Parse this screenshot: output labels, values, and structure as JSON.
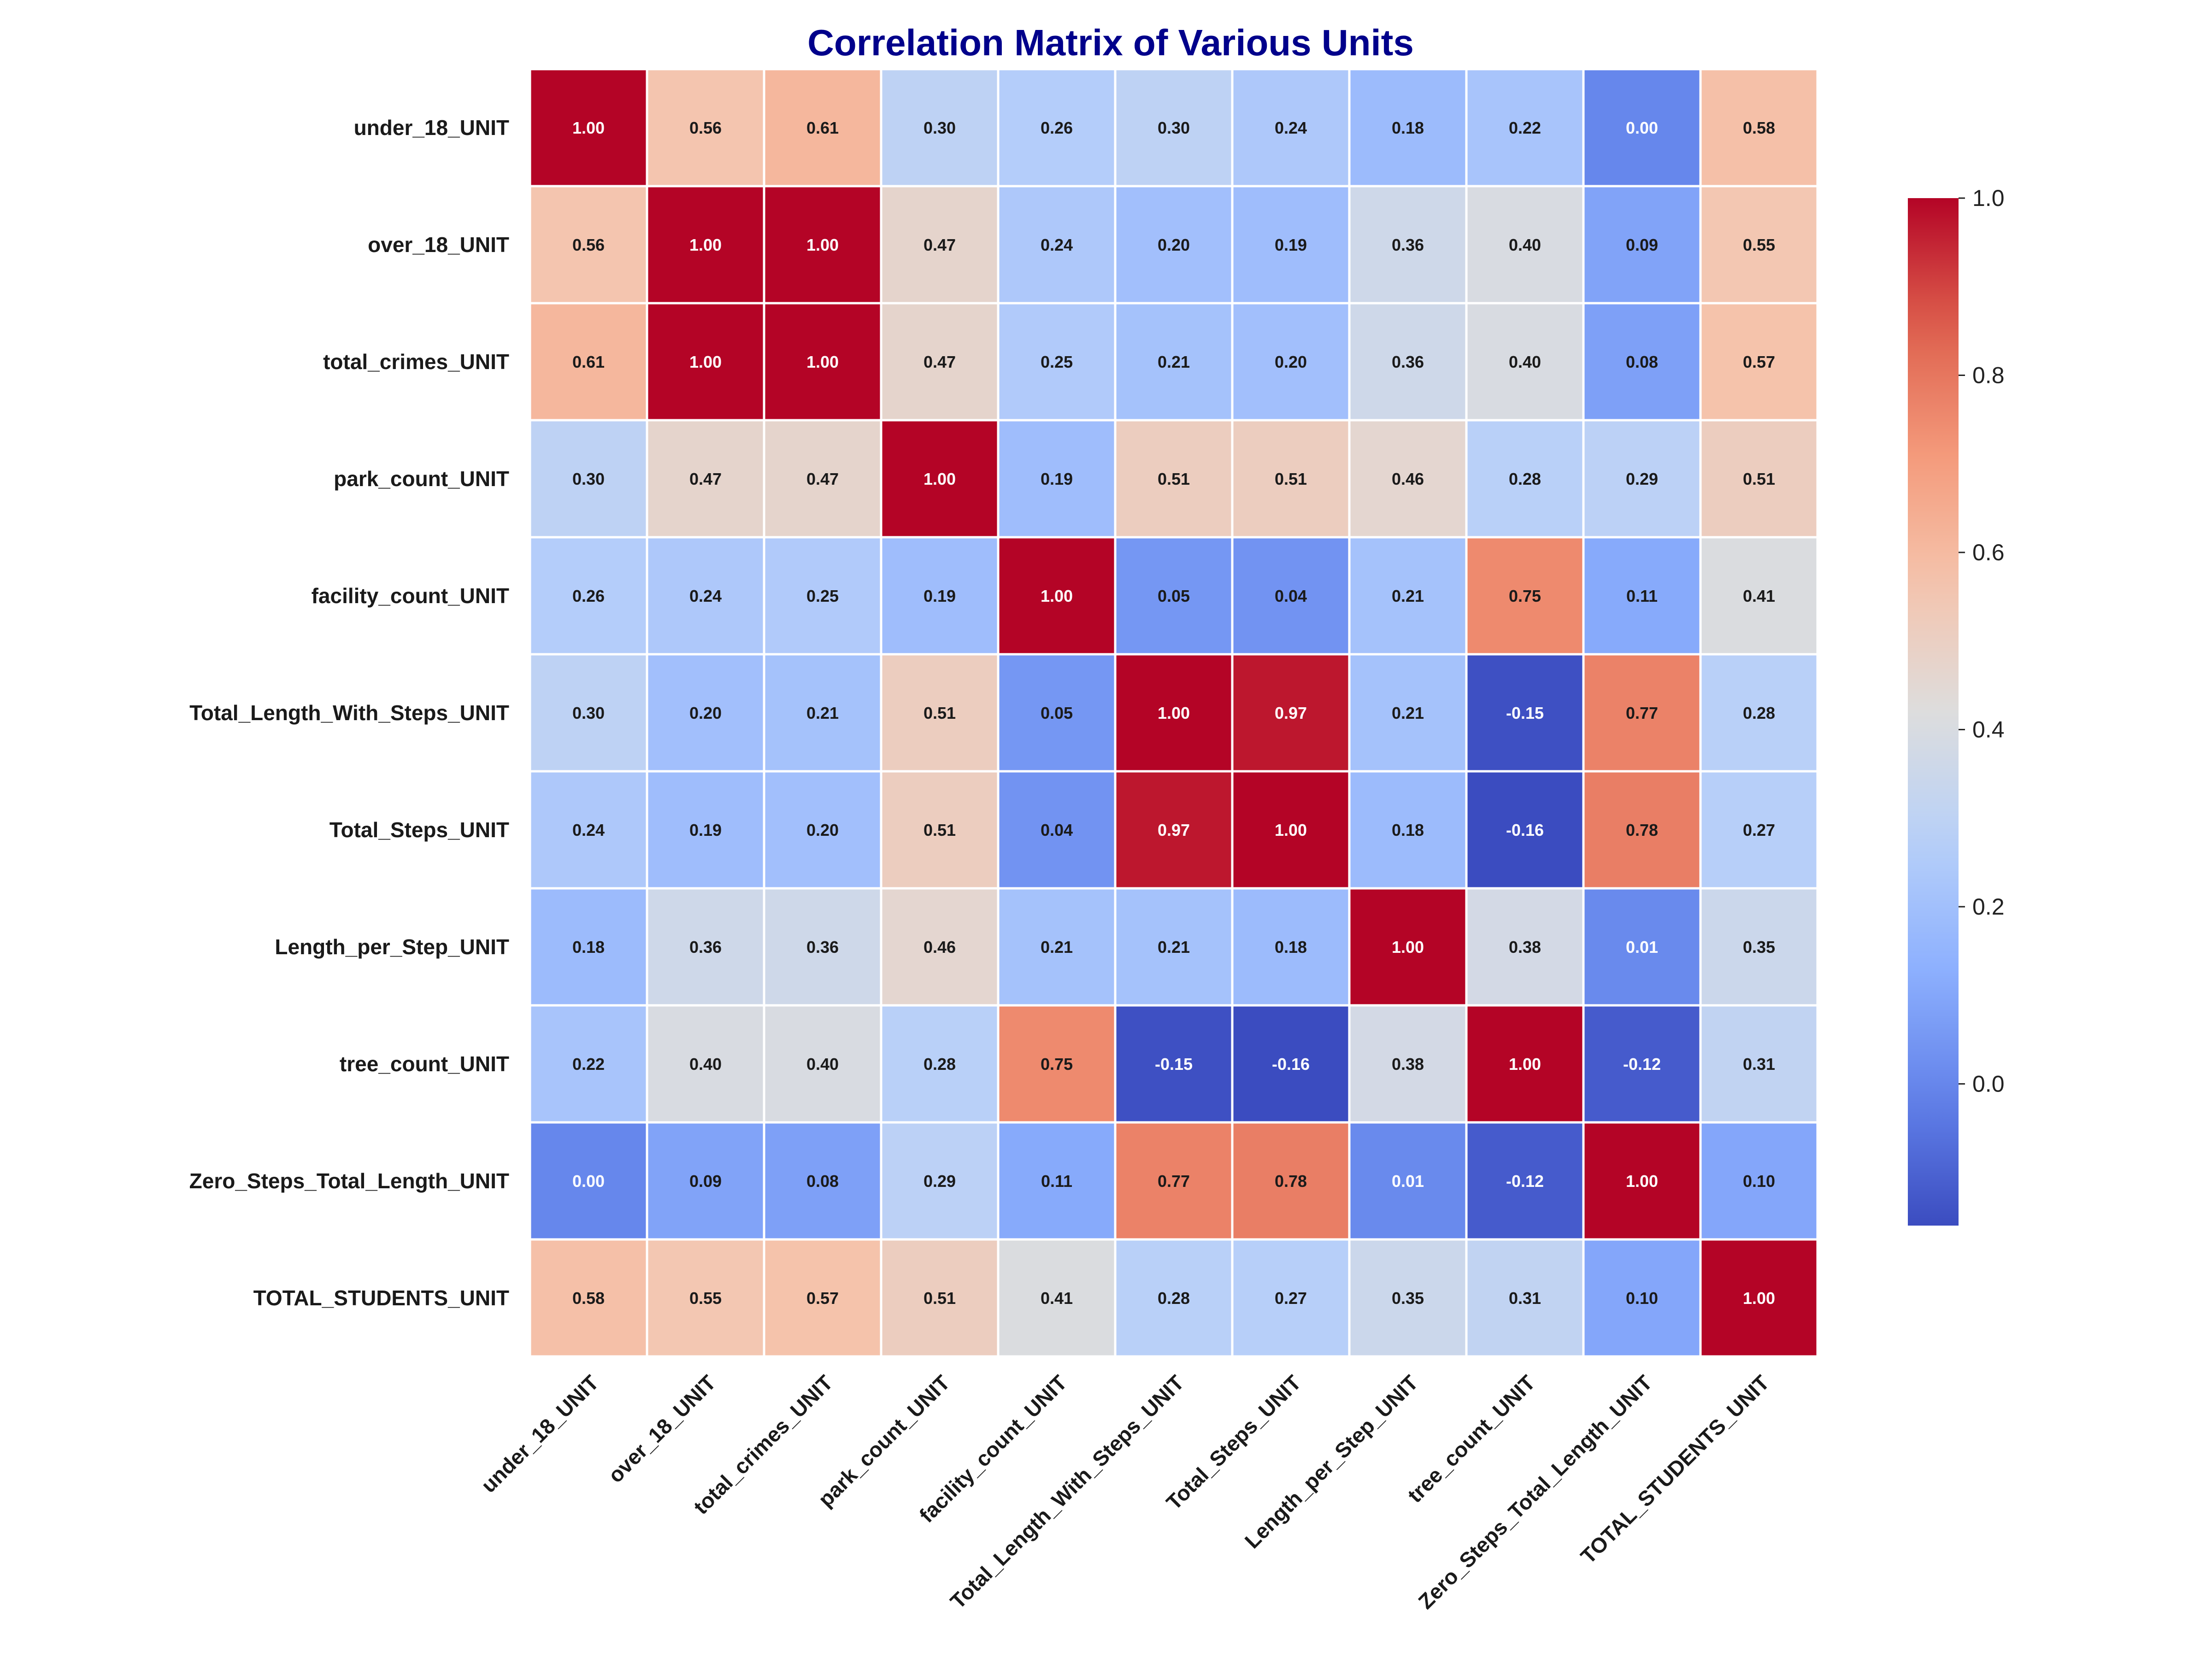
{
  "chart_data": {
    "type": "heatmap",
    "title": "Correlation Matrix of Various Units",
    "title_color": "#00008b",
    "labels": [
      "under_18_UNIT",
      "over_18_UNIT",
      "total_crimes_UNIT",
      "park_count_UNIT",
      "facility_count_UNIT",
      "Total_Length_With_Steps_UNIT",
      "Total_Steps_UNIT",
      "Length_per_Step_UNIT",
      "tree_count_UNIT",
      "Zero_Steps_Total_Length_UNIT",
      "TOTAL_STUDENTS_UNIT"
    ],
    "matrix": [
      [
        1.0,
        0.56,
        0.61,
        0.3,
        0.26,
        0.3,
        0.24,
        0.18,
        0.22,
        0.0,
        0.58
      ],
      [
        0.56,
        1.0,
        1.0,
        0.47,
        0.24,
        0.2,
        0.19,
        0.36,
        0.4,
        0.09,
        0.55
      ],
      [
        0.61,
        1.0,
        1.0,
        0.47,
        0.25,
        0.21,
        0.2,
        0.36,
        0.4,
        0.08,
        0.57
      ],
      [
        0.3,
        0.47,
        0.47,
        1.0,
        0.19,
        0.51,
        0.51,
        0.46,
        0.28,
        0.29,
        0.51
      ],
      [
        0.26,
        0.24,
        0.25,
        0.19,
        1.0,
        0.05,
        0.04,
        0.21,
        0.75,
        0.11,
        0.41
      ],
      [
        0.3,
        0.2,
        0.21,
        0.51,
        0.05,
        1.0,
        0.97,
        0.21,
        -0.15,
        0.77,
        0.28
      ],
      [
        0.24,
        0.19,
        0.2,
        0.51,
        0.04,
        0.97,
        1.0,
        0.18,
        -0.16,
        0.78,
        0.27
      ],
      [
        0.18,
        0.36,
        0.36,
        0.46,
        0.21,
        0.21,
        0.18,
        1.0,
        0.38,
        0.01,
        0.35
      ],
      [
        0.22,
        0.4,
        0.4,
        0.28,
        0.75,
        -0.15,
        -0.16,
        0.38,
        1.0,
        -0.12,
        0.31
      ],
      [
        0.0,
        0.09,
        0.08,
        0.29,
        0.11,
        0.77,
        0.78,
        0.01,
        -0.12,
        1.0,
        0.1
      ],
      [
        0.58,
        0.55,
        0.57,
        0.51,
        0.41,
        0.28,
        0.27,
        0.35,
        0.31,
        0.1,
        1.0
      ]
    ],
    "value_format": "2 decimals",
    "colormap": "coolwarm",
    "vmin": -0.16,
    "vmax": 1.0,
    "colorbar": {
      "ticks": [
        0.0,
        0.2,
        0.4,
        0.6,
        0.8,
        1.0
      ],
      "tick_labels": [
        "0.0",
        "0.2",
        "0.4",
        "0.6",
        "0.8",
        "1.0"
      ],
      "placement": "right"
    },
    "cell_border_color": "#ffffff",
    "text_color_light": "#ffffff",
    "text_color_dark": "#1a1a1a"
  }
}
